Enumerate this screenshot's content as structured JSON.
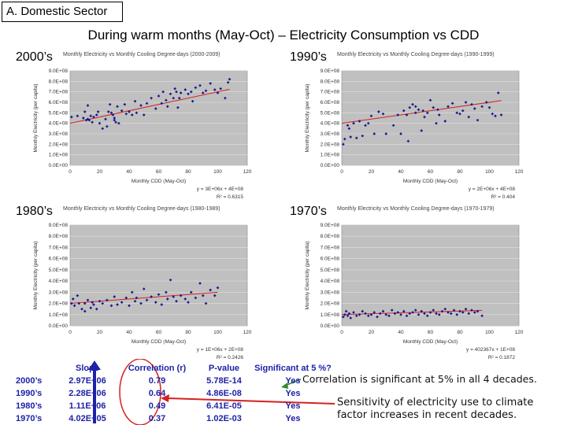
{
  "section_label": "A. Domestic Sector",
  "main_title": "During warm months (May-Oct) – Electricity Consumption vs CDD",
  "colors": {
    "points": "#1a1a8c",
    "trend": "#d62020",
    "plot_bg": "#c0c0c0",
    "table_text": "#1e22a8",
    "arrow": "#d62020",
    "arrow_blue": "#1e22a8",
    "arrow_green": "#2e8b2e"
  },
  "chart_data": [
    {
      "type": "scatter",
      "decade": "2000’s",
      "title": "Monthly Electricity vs Monthly Cooling Degree-days (2000-2009)",
      "xlabel": "Monthly CDD (May-Oct)",
      "ylabel": "Monthly Electricity (per capita)",
      "xlim": [
        0,
        120
      ],
      "ylim": [
        0,
        900000000
      ],
      "xticks": [
        "0",
        "20",
        "40",
        "60",
        "80",
        "100",
        "120"
      ],
      "yticks": [
        "0.0E+00",
        "1.0E+08",
        "2.0E+08",
        "3.0E+08",
        "4.0E+08",
        "5.0E+08",
        "6.0E+08",
        "7.0E+08",
        "8.0E+08",
        "9.0E+08"
      ],
      "equation": "y = 3E+06x + 4E+08",
      "r2": "R² = 0.6315",
      "trend": {
        "slope": 3000000,
        "intercept": 400000000
      },
      "grid": true,
      "x": [
        1,
        5,
        9,
        10,
        11,
        12,
        12,
        13,
        14,
        15,
        16,
        18,
        19,
        20,
        22,
        24,
        25,
        26,
        27,
        28,
        29,
        30,
        30,
        31,
        32,
        33,
        35,
        37,
        38,
        40,
        42,
        44,
        45,
        48,
        50,
        52,
        55,
        58,
        60,
        62,
        63,
        65,
        66,
        68,
        70,
        71,
        72,
        73,
        74,
        75,
        78,
        80,
        82,
        83,
        85,
        88,
        90,
        92,
        95,
        98,
        100,
        102,
        105,
        107,
        108
      ],
      "y": [
        460000000,
        470000000,
        450000000,
        510000000,
        430000000,
        570000000,
        440000000,
        430000000,
        470000000,
        410000000,
        460000000,
        480000000,
        510000000,
        400000000,
        350000000,
        440000000,
        370000000,
        510000000,
        580000000,
        500000000,
        480000000,
        430000000,
        450000000,
        410000000,
        560000000,
        400000000,
        520000000,
        580000000,
        490000000,
        510000000,
        480000000,
        610000000,
        500000000,
        570000000,
        480000000,
        590000000,
        640000000,
        540000000,
        660000000,
        590000000,
        700000000,
        620000000,
        560000000,
        680000000,
        640000000,
        730000000,
        700000000,
        550000000,
        640000000,
        690000000,
        720000000,
        680000000,
        700000000,
        610000000,
        740000000,
        760000000,
        690000000,
        710000000,
        780000000,
        720000000,
        690000000,
        730000000,
        640000000,
        790000000,
        820000000
      ]
    },
    {
      "type": "scatter",
      "decade": "1990’s",
      "title": "Monthly Electricity vs Monthly Cooling Degree-days (1990-1999)",
      "xlabel": "Monthly CDD (May-Oct)",
      "ylabel": "Monthly Electricity (per capita)",
      "xlim": [
        0,
        120
      ],
      "ylim": [
        0,
        900000000
      ],
      "xticks": [
        "0",
        "20",
        "40",
        "60",
        "80",
        "100",
        "120"
      ],
      "yticks": [
        "0.0E+00",
        "1.0E+08",
        "2.0E+08",
        "3.0E+08",
        "4.0E+08",
        "5.0E+08",
        "6.0E+08",
        "7.0E+08",
        "8.0E+08",
        "9.0E+08"
      ],
      "equation": "y = 2E+06x + 4E+08",
      "r2": "R² = 0.404",
      "trend": {
        "slope": 2000000,
        "intercept": 400000000
      },
      "grid": true,
      "x": [
        1,
        2,
        4,
        5,
        6,
        8,
        10,
        12,
        14,
        16,
        18,
        20,
        22,
        25,
        28,
        30,
        35,
        38,
        40,
        42,
        44,
        45,
        46,
        48,
        50,
        50,
        52,
        54,
        55,
        56,
        58,
        60,
        62,
        64,
        65,
        66,
        70,
        72,
        75,
        78,
        80,
        82,
        84,
        86,
        88,
        90,
        92,
        95,
        98,
        100,
        102,
        104,
        106,
        108
      ],
      "y": [
        200000000,
        250000000,
        380000000,
        350000000,
        270000000,
        400000000,
        260000000,
        420000000,
        280000000,
        380000000,
        400000000,
        470000000,
        300000000,
        510000000,
        490000000,
        300000000,
        380000000,
        480000000,
        300000000,
        520000000,
        480000000,
        230000000,
        550000000,
        580000000,
        500000000,
        560000000,
        530000000,
        330000000,
        520000000,
        460000000,
        500000000,
        620000000,
        550000000,
        400000000,
        530000000,
        480000000,
        420000000,
        560000000,
        590000000,
        500000000,
        490000000,
        520000000,
        600000000,
        460000000,
        580000000,
        540000000,
        430000000,
        560000000,
        600000000,
        550000000,
        490000000,
        470000000,
        690000000,
        480000000
      ]
    },
    {
      "type": "scatter",
      "decade": "1980’s",
      "title": "Monthly Electricity vs Monthly Cooling Degree-days (1980-1989)",
      "xlabel": "Monthly CDD (May-Oct)",
      "ylabel": "Monthly Electricity (per capita)",
      "xlim": [
        0,
        120
      ],
      "ylim": [
        0,
        900000000
      ],
      "xticks": [
        "0",
        "20",
        "40",
        "60",
        "80",
        "100",
        "120"
      ],
      "yticks": [
        "0.0E+00",
        "1.0E+08",
        "2.0E+08",
        "3.0E+08",
        "4.0E+08",
        "5.0E+08",
        "6.0E+08",
        "7.0E+08",
        "8.0E+08",
        "9.0E+08"
      ],
      "equation": "y = 1E+06x + 2E+08",
      "r2": "R² = 0.2426",
      "trend": {
        "slope": 1000000,
        "intercept": 200000000
      },
      "grid": true,
      "x": [
        1,
        2,
        3,
        5,
        6,
        8,
        10,
        10,
        12,
        14,
        15,
        16,
        18,
        20,
        22,
        25,
        28,
        30,
        32,
        35,
        38,
        40,
        42,
        44,
        45,
        48,
        50,
        52,
        55,
        58,
        60,
        62,
        65,
        66,
        68,
        70,
        72,
        75,
        78,
        80,
        82,
        85,
        88,
        90,
        92,
        95,
        98,
        100
      ],
      "y": [
        200000000,
        240000000,
        180000000,
        270000000,
        200000000,
        150000000,
        200000000,
        130000000,
        230000000,
        160000000,
        210000000,
        190000000,
        150000000,
        220000000,
        200000000,
        230000000,
        180000000,
        260000000,
        190000000,
        210000000,
        250000000,
        180000000,
        300000000,
        220000000,
        250000000,
        200000000,
        330000000,
        230000000,
        260000000,
        210000000,
        280000000,
        190000000,
        300000000,
        240000000,
        410000000,
        260000000,
        220000000,
        270000000,
        240000000,
        210000000,
        300000000,
        250000000,
        380000000,
        270000000,
        200000000,
        320000000,
        270000000,
        340000000
      ]
    },
    {
      "type": "scatter",
      "decade": "1970’s",
      "title": "Monthly Electricity vs Monthly Cooling Degree-days (1970-1979)",
      "xlabel": "Monthly CDD (May-Oct)",
      "ylabel": "Monthly Electricity (per capita)",
      "xlim": [
        0,
        120
      ],
      "ylim": [
        0,
        900000000
      ],
      "xticks": [
        "0",
        "20",
        "40",
        "60",
        "80",
        "100",
        "120"
      ],
      "yticks": [
        "0.0E+00",
        "1.0E+08",
        "2.0E+08",
        "3.0E+08",
        "4.0E+08",
        "5.0E+08",
        "6.0E+08",
        "7.0E+08",
        "8.0E+08",
        "9.0E+08"
      ],
      "equation": "y = 402367x + 1E+08",
      "r2": "R² = 0.1872",
      "trend": {
        "slope": 402367,
        "intercept": 100000000
      },
      "grid": true,
      "x": [
        1,
        2,
        3,
        4,
        5,
        6,
        8,
        10,
        12,
        14,
        16,
        18,
        20,
        22,
        24,
        26,
        28,
        30,
        32,
        34,
        36,
        38,
        40,
        42,
        44,
        46,
        48,
        50,
        52,
        54,
        56,
        58,
        60,
        62,
        64,
        66,
        68,
        70,
        72,
        74,
        76,
        78,
        80,
        82,
        84,
        86,
        88,
        90,
        92,
        95
      ],
      "y": [
        80000000,
        100000000,
        130000000,
        90000000,
        110000000,
        70000000,
        120000000,
        90000000,
        100000000,
        130000000,
        110000000,
        90000000,
        100000000,
        120000000,
        80000000,
        110000000,
        130000000,
        100000000,
        90000000,
        140000000,
        110000000,
        120000000,
        100000000,
        130000000,
        90000000,
        110000000,
        120000000,
        140000000,
        100000000,
        130000000,
        110000000,
        90000000,
        120000000,
        140000000,
        110000000,
        100000000,
        130000000,
        150000000,
        120000000,
        110000000,
        140000000,
        100000000,
        130000000,
        120000000,
        150000000,
        110000000,
        140000000,
        120000000,
        130000000,
        90000000
      ]
    }
  ],
  "stats_table": {
    "headers": [
      "Slope",
      "Correlation (r)",
      "P-value",
      "Significant at 5 %?"
    ],
    "rows": [
      {
        "decade": "2000’s",
        "slope": "2.97E+06",
        "r": "0.79",
        "p": "5.78E-14",
        "sig": "Yes"
      },
      {
        "decade": "1990’s",
        "slope": "2.28E+06",
        "r": "0.64",
        "p": "4.86E-08",
        "sig": "Yes"
      },
      {
        "decade": "1980’s",
        "slope": "1.11E+06",
        "r": "0.49",
        "p": "6.41E-05",
        "sig": "Yes"
      },
      {
        "decade": "1970’s",
        "slope": "4.02E+05",
        "r": "0.37",
        "p": "1.02E-03",
        "sig": "Yes"
      }
    ]
  },
  "notes": {
    "significance": "Correlation is significant at 5% in all 4 decades.",
    "sensitivity": "Sensitivity of electricity use to climate factor increases in recent decades."
  }
}
